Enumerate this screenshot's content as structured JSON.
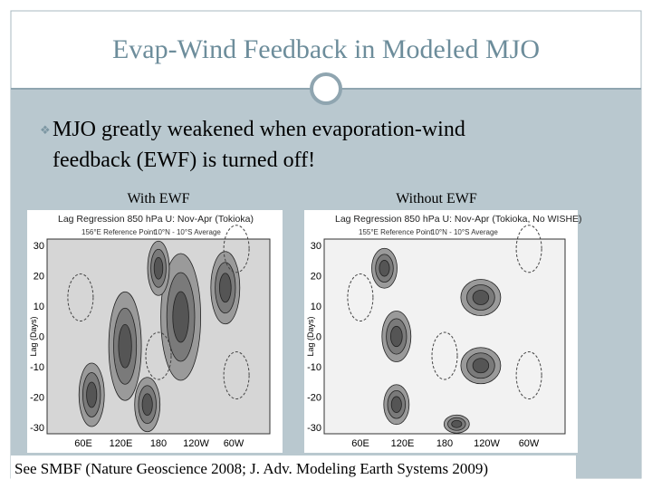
{
  "slide": {
    "title": "Evap-Wind Feedback in Modeled MJO",
    "bullet": [
      "MJO greatly weakened when evaporation-wind",
      "feedback (EWF) is turned off!"
    ],
    "panels": [
      {
        "caption": "With EWF",
        "plot_title": "Lag Regression 850 hPa U: Nov-Apr (Tokioka)",
        "reference": "156°E Reference Point",
        "average": "10°N - 10°S Average",
        "ylabel": "Lag (Days)",
        "yticks": [
          30,
          20,
          10,
          0,
          -10,
          -20,
          -30
        ],
        "xticks": [
          "60E",
          "120E",
          "180",
          "120W",
          "60W"
        ]
      },
      {
        "caption": "Without EWF",
        "plot_title": "Lag Regression 850 hPa U: Nov-Apr (Tokioka, No WISHE)",
        "reference": "155°E Reference Point",
        "average": "10°N - 10°S Average",
        "ylabel": "Lag (Days)",
        "yticks": [
          30,
          20,
          10,
          0,
          -10,
          -20,
          -30
        ],
        "xticks": [
          "60E",
          "120E",
          "180",
          "120W",
          "60W"
        ]
      }
    ],
    "footer": "See SMBF (Nature Geoscience 2008; J. Adv. Modeling Earth Systems 2009)"
  }
}
